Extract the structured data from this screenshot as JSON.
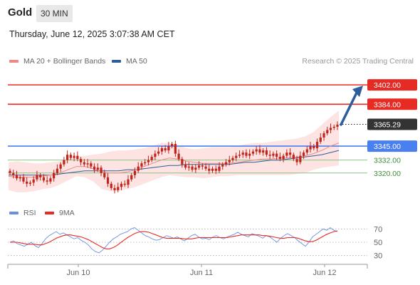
{
  "header": {
    "title": "Gold",
    "timeframe": "30 MIN",
    "datetime": "Thursday, June 12, 2025 3:07:38 AM CET"
  },
  "legend": {
    "ma20_label": "MA 20 + Bollinger Bands",
    "ma50_label": "MA 50",
    "credit": "Research © 2025 Trading Central",
    "rsi_label": "RSI",
    "rsi_ma_label": "9MA"
  },
  "colors": {
    "ma20": "#ee8a85",
    "ma50": "#2e5d9c",
    "bands_fill": "#fde3e1",
    "resistance": "#e52b23",
    "support_pivot": "#4a7ff0",
    "support": "#8cc485",
    "rsi": "#6b8ee0",
    "rsi_ma": "#e52b23",
    "candle": "#c2231b",
    "arrow": "#2e5d9c"
  },
  "chart_data": {
    "type": "candlestick",
    "price_axis_ylim": [
      3292,
      3418
    ],
    "x_tick_labels": [
      "Jun 10",
      "Jun 11",
      "Jun 12"
    ],
    "current_price": "3365.29",
    "levels": [
      {
        "value": 3402,
        "label": "3402.00",
        "kind": "resistance"
      },
      {
        "value": 3384,
        "label": "3384.00",
        "kind": "resistance"
      },
      {
        "value": 3345,
        "label": "3345.00",
        "kind": "pivot"
      },
      {
        "value": 3332,
        "label": "3332.00",
        "kind": "support"
      },
      {
        "value": 3320,
        "label": "3320.00",
        "kind": "support"
      }
    ],
    "projection_arrow": {
      "from": 3365,
      "to": 3400
    },
    "close_series": [
      3320,
      3318,
      3315,
      3316,
      3312,
      3310,
      3311,
      3314,
      3318,
      3316,
      3313,
      3312,
      3315,
      3320,
      3324,
      3328,
      3332,
      3337,
      3334,
      3336,
      3333,
      3330,
      3328,
      3329,
      3326,
      3323,
      3325,
      3320,
      3316,
      3310,
      3306,
      3304,
      3307,
      3310,
      3309,
      3314,
      3318,
      3322,
      3326,
      3329,
      3330,
      3332,
      3335,
      3338,
      3340,
      3343,
      3341,
      3345,
      3347,
      3338,
      3333,
      3328,
      3325,
      3326,
      3323,
      3325,
      3327,
      3326,
      3324,
      3322,
      3324,
      3322,
      3326,
      3328,
      3330,
      3332,
      3334,
      3336,
      3337,
      3339,
      3336,
      3338,
      3340,
      3342,
      3339,
      3341,
      3337,
      3336,
      3338,
      3335,
      3333,
      3336,
      3339,
      3337,
      3333,
      3330,
      3336,
      3339,
      3342,
      3345,
      3343,
      3349,
      3353,
      3357,
      3360,
      3362,
      3363,
      3365
    ],
    "bollinger_upper": [
      3330,
      3331,
      3330,
      3329,
      3329,
      3330,
      3331,
      3333,
      3335,
      3336,
      3337,
      3338,
      3340,
      3341,
      3341,
      3342,
      3343,
      3345,
      3348,
      3348,
      3346,
      3343,
      3342,
      3343,
      3344,
      3344,
      3344,
      3345,
      3347,
      3348,
      3348,
      3349,
      3350,
      3351,
      3352,
      3354,
      3358,
      3365,
      3372,
      3378
    ],
    "bollinger_lower": [
      3304,
      3302,
      3302,
      3303,
      3305,
      3306,
      3309,
      3313,
      3317,
      3316,
      3312,
      3305,
      3303,
      3303,
      3305,
      3307,
      3310,
      3313,
      3316,
      3318,
      3317,
      3316,
      3316,
      3315,
      3316,
      3317,
      3317,
      3318,
      3318,
      3318,
      3318,
      3318,
      3318,
      3318,
      3319,
      3320,
      3323,
      3325,
      3326,
      3327
    ],
    "ma20": [
      3317,
      3316,
      3316,
      3316,
      3317,
      3318,
      3320,
      3323,
      3326,
      3326,
      3324,
      3321,
      3320,
      3320,
      3321,
      3323,
      3326,
      3329,
      3332,
      3334,
      3333,
      3331,
      3330,
      3329,
      3329,
      3329,
      3329,
      3330,
      3331,
      3332,
      3333,
      3333,
      3334,
      3334,
      3335,
      3336,
      3338,
      3341,
      3345,
      3348
    ],
    "ma50": [
      3318,
      3318,
      3318,
      3318,
      3318,
      3318,
      3319,
      3320,
      3321,
      3322,
      3322,
      3322,
      3322,
      3322,
      3323,
      3323,
      3324,
      3325,
      3326,
      3327,
      3327,
      3328,
      3328,
      3328,
      3328,
      3328,
      3328,
      3329,
      3330,
      3330,
      3331,
      3332,
      3332,
      3333,
      3334,
      3335,
      3336,
      3337,
      3339,
      3341
    ],
    "rsi": {
      "levels": [
        70,
        50,
        30
      ],
      "rsi_values": [
        50,
        52,
        48,
        46,
        44,
        47,
        50,
        45,
        42,
        48,
        55,
        60,
        63,
        66,
        62,
        64,
        61,
        58,
        55,
        57,
        53,
        50,
        46,
        40,
        36,
        34,
        38,
        44,
        50,
        55,
        58,
        62,
        64,
        66,
        70,
        72,
        68,
        64,
        60,
        58,
        55,
        53,
        54,
        57,
        60,
        58,
        56,
        58,
        55,
        52,
        56,
        60,
        62,
        58,
        55,
        56,
        54,
        58,
        60,
        57,
        55,
        58,
        60,
        62,
        65,
        62,
        60,
        58,
        63,
        61,
        59,
        56,
        60,
        58,
        54,
        50,
        56,
        60,
        63,
        60,
        57,
        52,
        48,
        44,
        50,
        58,
        62,
        66,
        70,
        68,
        72,
        68,
        66
      ],
      "ma9_values": [
        50,
        50,
        50,
        49,
        48,
        47,
        47,
        47,
        46,
        46,
        48,
        50,
        53,
        56,
        58,
        60,
        61,
        61,
        60,
        59,
        58,
        56,
        54,
        51,
        48,
        45,
        42,
        40,
        40,
        42,
        45,
        49,
        53,
        57,
        60,
        63,
        65,
        66,
        66,
        65,
        63,
        61,
        59,
        57,
        56,
        56,
        56,
        56,
        56,
        55,
        55,
        55,
        56,
        57,
        57,
        57,
        57,
        57,
        57,
        57,
        57,
        57,
        58,
        59,
        60,
        61,
        61,
        61,
        61,
        61,
        61,
        60,
        60,
        59,
        58,
        57,
        56,
        56,
        57,
        57,
        57,
        56,
        54,
        52,
        51,
        51,
        53,
        56,
        59,
        62,
        64,
        66,
        67
      ]
    }
  }
}
